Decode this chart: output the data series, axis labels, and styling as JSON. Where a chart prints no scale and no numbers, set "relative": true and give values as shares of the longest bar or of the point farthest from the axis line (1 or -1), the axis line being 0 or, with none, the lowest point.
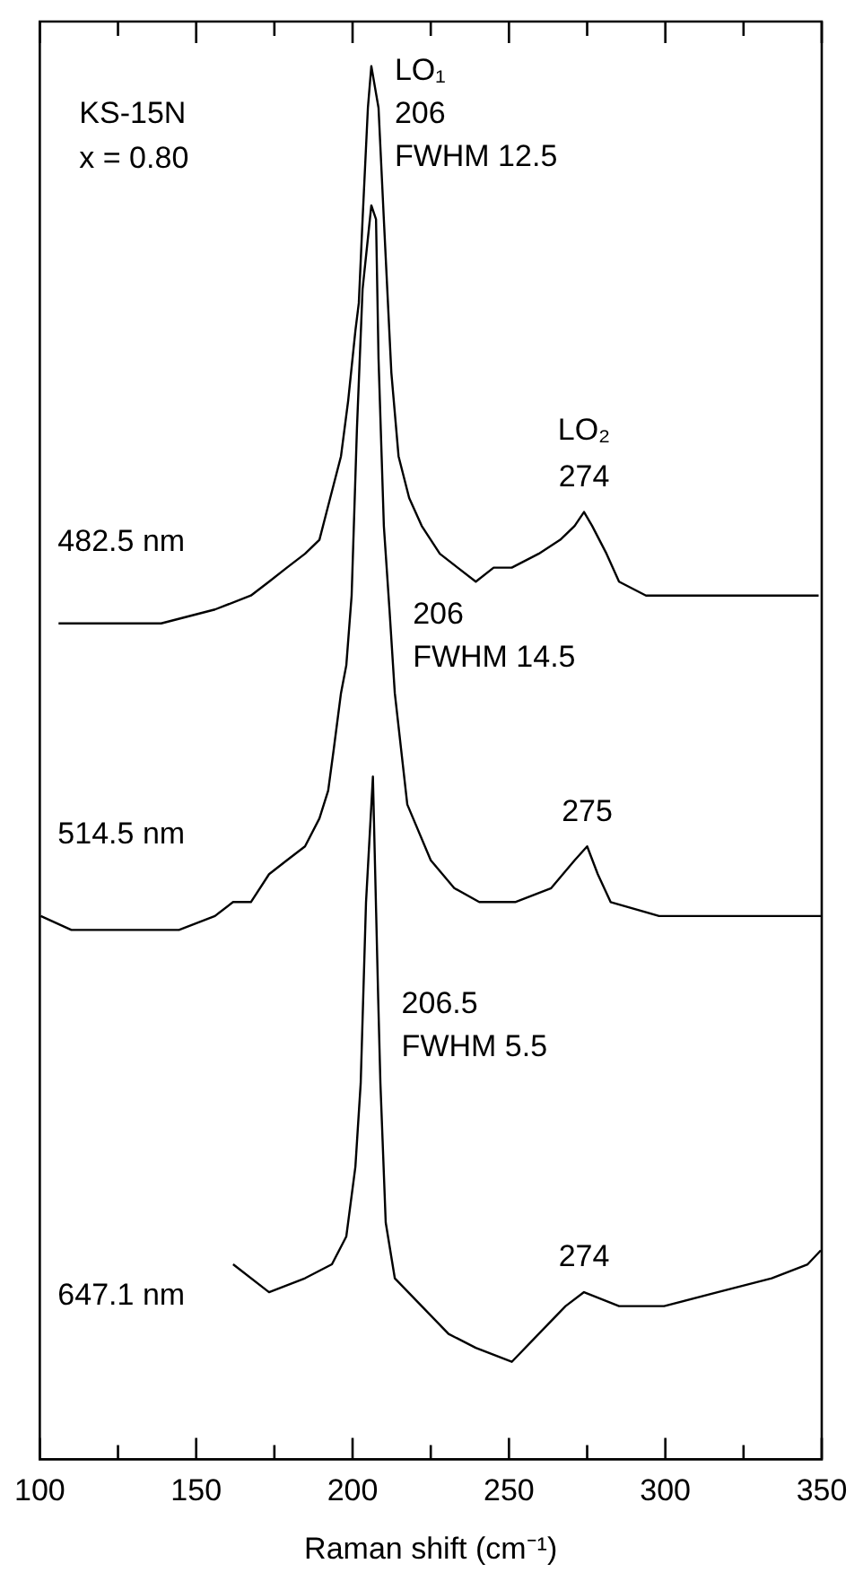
{
  "chart_data": {
    "type": "line",
    "relative": true,
    "xlabel": "Raman shift (cm⁻¹)",
    "xlim": [
      100,
      350
    ],
    "xticks": [
      100,
      {
        "value": 125,
        "label": null
      },
      150,
      {
        "value": 175,
        "label": null
      },
      200,
      {
        "value": 225,
        "label": null
      },
      250,
      {
        "value": 275,
        "label": null
      },
      300,
      {
        "value": 325,
        "label": null
      },
      350
    ],
    "grid": false,
    "legend": false,
    "marker": "none",
    "line_style": "solid",
    "series": [
      {
        "name": "482.5 nm",
        "color": "#000000",
        "x": [
          106,
          121.6,
          138.8,
          156,
          167.5,
          173.3,
          179,
          184.8,
          189.4,
          191.7,
          194,
          196.3,
          198.6,
          200.9,
          202,
          203.2,
          204.9,
          206,
          208.3,
          210,
          212.4,
          214.7,
          218.1,
          222.1,
          227.9,
          233.6,
          239.4,
          245.1,
          250.9,
          259.5,
          266.4,
          271,
          274,
          276.6,
          281.2,
          285.2,
          293.8,
          305.3,
          316.7,
          328.4,
          339.9,
          349
        ],
        "values": [
          0.6,
          0.6,
          0.6,
          0.61,
          0.62,
          0.63,
          0.64,
          0.65,
          0.66,
          0.68,
          0.7,
          0.72,
          0.76,
          0.81,
          0.83,
          0.89,
          0.97,
          1.0,
          0.97,
          0.89,
          0.78,
          0.72,
          0.69,
          0.67,
          0.65,
          0.64,
          0.63,
          0.64,
          0.64,
          0.65,
          0.66,
          0.67,
          0.68,
          0.67,
          0.65,
          0.63,
          0.62,
          0.62,
          0.62,
          0.62,
          0.62,
          0.62
        ]
      },
      {
        "name": "514.5 nm",
        "color": "#000000",
        "x": [
          100.3,
          110.1,
          121.6,
          133,
          144.5,
          156,
          161.8,
          167.5,
          173.3,
          179,
          184.8,
          189.4,
          192.2,
          194,
          196.3,
          198,
          199.7,
          201.4,
          203.2,
          206,
          207.5,
          208.3,
          210,
          211.8,
          213.5,
          217.5,
          225,
          232.5,
          240.5,
          252,
          263.5,
          271,
          275,
          278.4,
          282.5,
          298,
          317,
          336,
          349.7
        ],
        "values": [
          0.39,
          0.38,
          0.38,
          0.38,
          0.38,
          0.39,
          0.4,
          0.4,
          0.42,
          0.43,
          0.44,
          0.46,
          0.48,
          0.51,
          0.55,
          0.57,
          0.62,
          0.74,
          0.84,
          0.9,
          0.89,
          0.79,
          0.67,
          0.61,
          0.55,
          0.47,
          0.43,
          0.41,
          0.4,
          0.4,
          0.41,
          0.43,
          0.44,
          0.42,
          0.4,
          0.39,
          0.39,
          0.39,
          0.39
        ]
      },
      {
        "name": "647.1 nm",
        "color": "#000000",
        "x": [
          161.8,
          173.3,
          184.8,
          193.4,
          198,
          200.9,
          202.6,
          204.3,
          206.5,
          208.2,
          208.9,
          210.6,
          213.5,
          222.1,
          230.7,
          239.4,
          250.9,
          259.5,
          268.1,
          274,
          285.2,
          299.6,
          316.7,
          334,
          345.5,
          349.7
        ],
        "values": [
          0.14,
          0.12,
          0.13,
          0.14,
          0.16,
          0.21,
          0.27,
          0.4,
          0.49,
          0.33,
          0.27,
          0.17,
          0.13,
          0.11,
          0.09,
          0.08,
          0.07,
          0.09,
          0.11,
          0.12,
          0.11,
          0.11,
          0.12,
          0.13,
          0.14,
          0.15
        ]
      }
    ],
    "annotations": [
      "KS-15N",
      "x = 0.80",
      {
        "text": "LO₁",
        "x": 206,
        "y": 1.0
      },
      {
        "text": "206",
        "x": 206,
        "y": 1.0
      },
      {
        "text": "FWHM 12.5",
        "x": 206,
        "y": 1.0
      },
      {
        "text": "LO₂",
        "x": 274,
        "y": 0.68
      },
      {
        "text": "274",
        "x": 274,
        "y": 0.68
      },
      {
        "text": "206",
        "x": 211.8,
        "y": 0.61
      },
      {
        "text": "FWHM 14.5",
        "x": 211.8,
        "y": 0.61
      },
      {
        "text": "275",
        "x": 275,
        "y": 0.44
      },
      {
        "text": "206.5",
        "x": 208.2,
        "y": 0.33
      },
      {
        "text": "FWHM 5.5",
        "x": 208.2,
        "y": 0.33
      },
      {
        "text": "274",
        "x": 274,
        "y": 0.12
      }
    ]
  }
}
